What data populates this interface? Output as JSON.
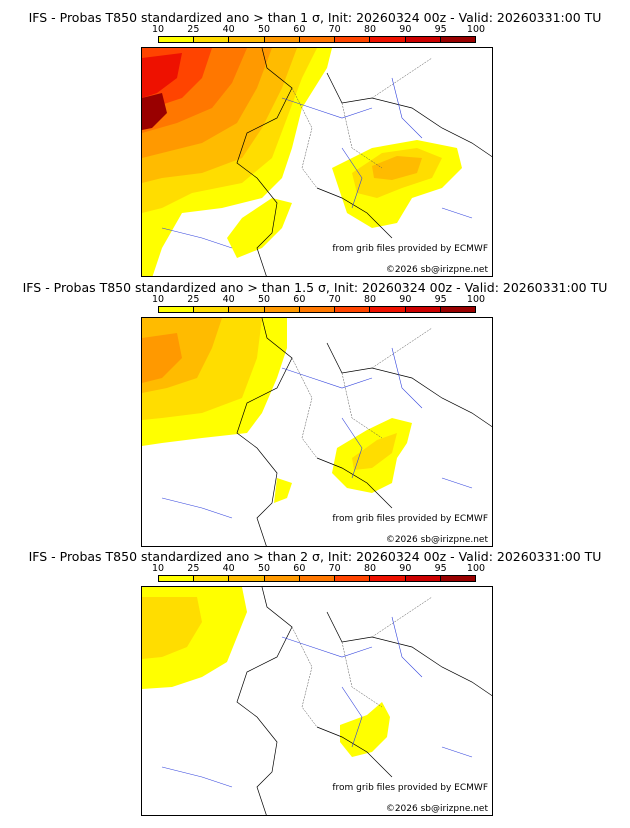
{
  "panels": [
    {
      "title": "IFS - Probas T850  standardized ano > than 1 σ, Init: 20260324 00z - Valid: 20260331:00 TU"
    },
    {
      "title": "IFS - Probas T850  standardized ano > than 1.5 σ, Init: 20260324 00z - Valid: 20260331:00 TU"
    },
    {
      "title": "IFS - Probas T850  standardized ano > than 2 σ, Init: 20260324 00z - Valid: 20260331:00 TU"
    }
  ],
  "colorbar": {
    "ticks": [
      "10",
      "25",
      "40",
      "50",
      "60",
      "70",
      "80",
      "90",
      "95",
      "100"
    ],
    "colors": [
      "#ffff00",
      "#ffdd00",
      "#ffbb00",
      "#ff9900",
      "#ff7700",
      "#ff4400",
      "#ee1100",
      "#cc0000",
      "#990000"
    ]
  },
  "credits": {
    "source": "from grib files provided by ECMWF",
    "copyright": "©2026 sb@irizpne.net"
  }
}
